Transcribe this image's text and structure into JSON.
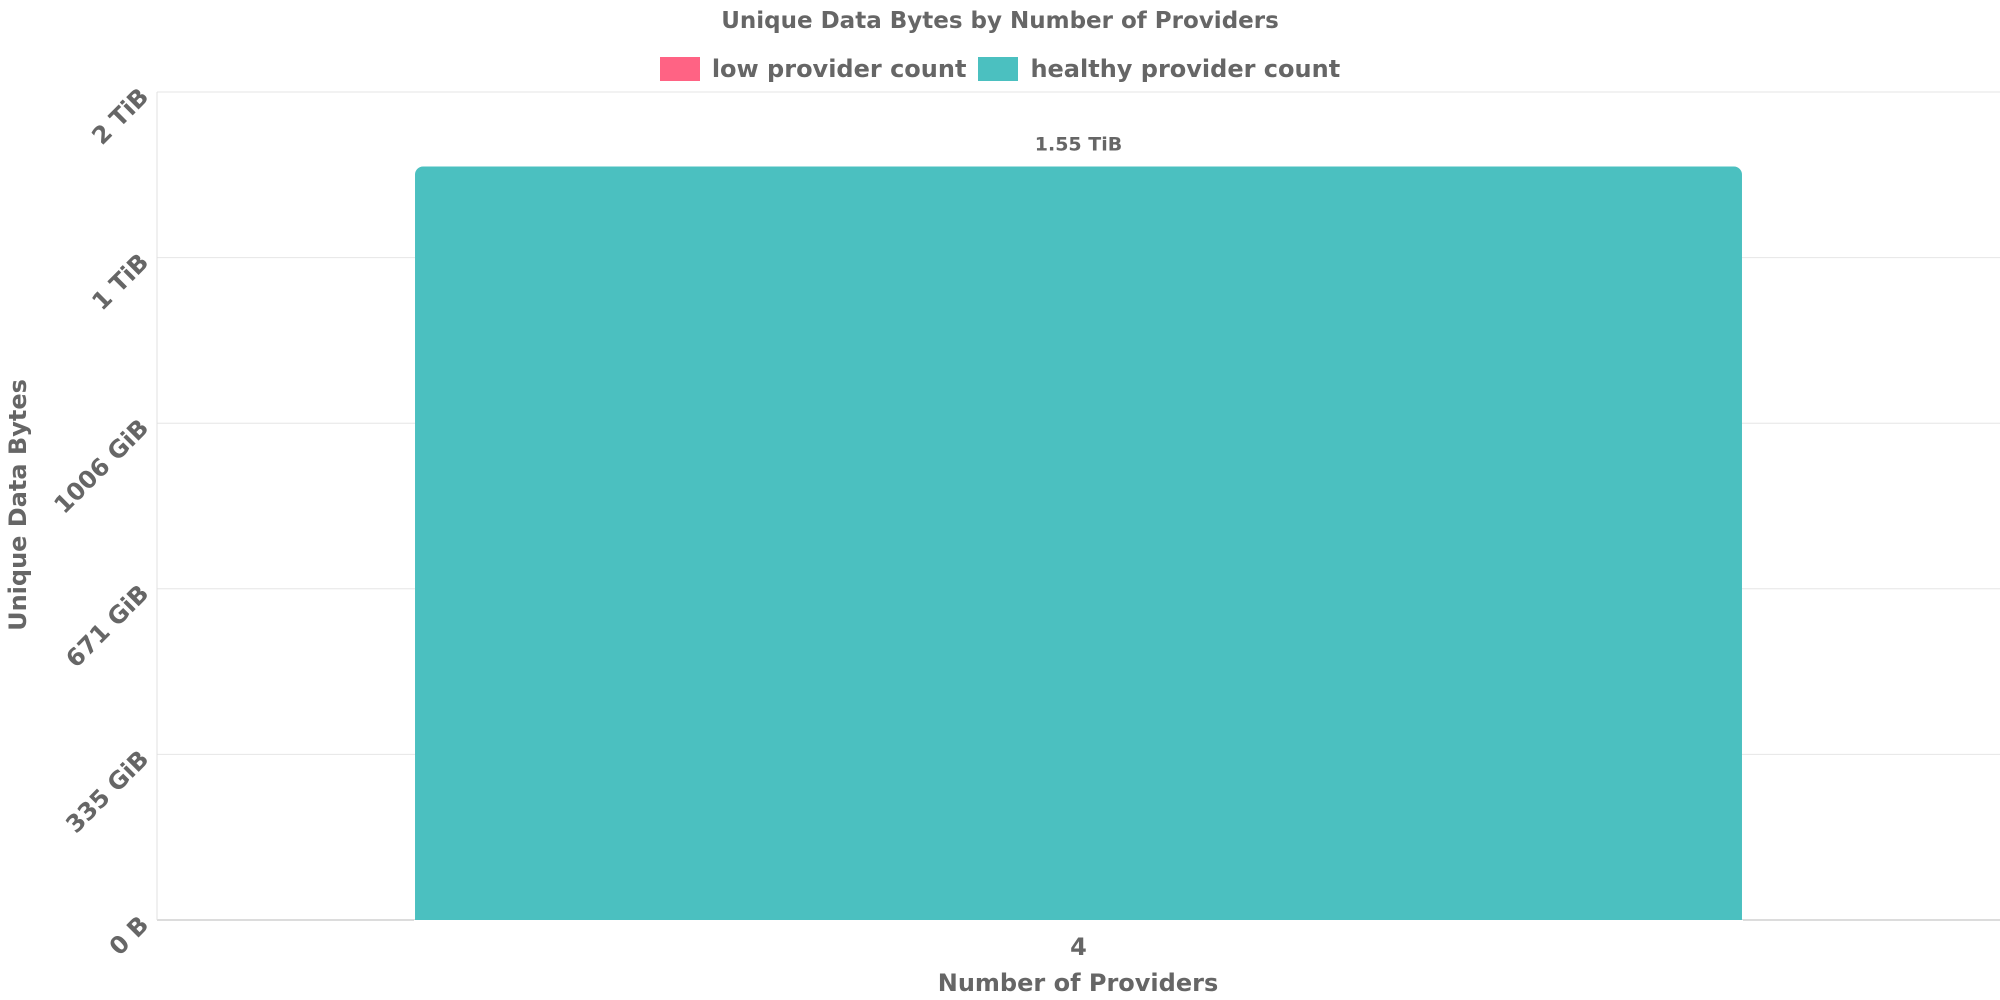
{
  "chart_data": {
    "type": "bar",
    "title": "Unique Data Bytes by Number of Providers",
    "xlabel": "Number of Providers",
    "ylabel": "Unique Data Bytes",
    "categories": [
      "4"
    ],
    "series": [
      {
        "name": "low provider count",
        "color": "#ff6384",
        "values": [
          0
        ]
      },
      {
        "name": "healthy provider count",
        "color": "#4bc0c0",
        "values": [
          1.55
        ]
      }
    ],
    "value_unit": "TiB",
    "ylim": [
      0,
      2.0
    ],
    "yticks": [
      {
        "value": 0,
        "label": "0 B"
      },
      {
        "value": 0.3272,
        "label": "335 GiB"
      },
      {
        "value": 0.6553,
        "label": "671 GiB"
      },
      {
        "value": 0.9824,
        "label": "1006 GiB"
      },
      {
        "value": 1.0,
        "label": "1 TiB"
      },
      {
        "value": 2.0,
        "label": "2 TiB"
      }
    ],
    "data_labels": [
      "1.55 TiB"
    ],
    "grid": true,
    "legend_position": "top-center"
  }
}
